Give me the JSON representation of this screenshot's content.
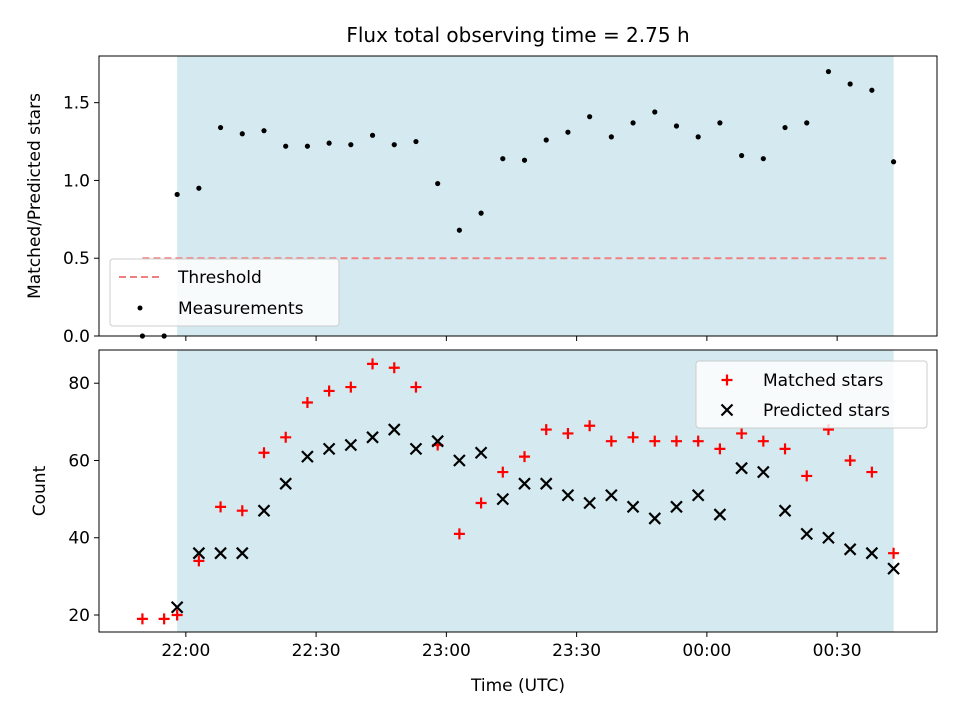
{
  "chart_data": [
    {
      "type": "scatter",
      "title": "Flux total observing time = 2.75 h",
      "xlabel": "",
      "ylabel": "Matched/Predicted stars",
      "ylim": [
        0,
        1.8
      ],
      "yticks": [
        0,
        0.5,
        1.0,
        1.5
      ],
      "ytick_labels": [
        "0.0",
        "0.5",
        "1.0",
        "1.5"
      ],
      "xlim_minutes": [
        1300,
        1493
      ],
      "shaded_span_minutes": [
        1318,
        1483
      ],
      "shade_color": "#d4eaf0",
      "grid": false,
      "legend_position": "lower-left",
      "threshold": {
        "name": "Threshold",
        "value": 0.5,
        "x_start": 1310,
        "x_end": 1482,
        "color": "#f08080"
      },
      "series": [
        {
          "name": "Measurements",
          "color": "#000000",
          "marker": "dot",
          "x": [
            1310,
            1315,
            1318,
            1323,
            1328,
            1333,
            1338,
            1343,
            1348,
            1353,
            1358,
            1363,
            1368,
            1373,
            1378,
            1383,
            1388,
            1393,
            1398,
            1403,
            1408,
            1413,
            1418,
            1423,
            1428,
            1433,
            1438,
            1443,
            1448,
            1453,
            1458,
            1463,
            1468,
            1473,
            1478,
            1483
          ],
          "y": [
            0,
            0,
            0.91,
            0.95,
            1.34,
            1.3,
            1.32,
            1.22,
            1.22,
            1.24,
            1.23,
            1.29,
            1.23,
            1.25,
            0.98,
            0.68,
            0.79,
            1.14,
            1.13,
            1.26,
            1.31,
            1.41,
            1.28,
            1.37,
            1.44,
            1.35,
            1.28,
            1.37,
            1.16,
            1.14,
            1.34,
            1.37,
            1.7,
            1.62,
            1.58,
            1.12
          ]
        }
      ]
    },
    {
      "type": "scatter",
      "title": "",
      "xlabel": "Time (UTC)",
      "ylabel": "Count",
      "ylim": [
        15.6,
        88.6
      ],
      "yticks": [
        20,
        40,
        60,
        80
      ],
      "ytick_labels": [
        "20",
        "40",
        "60",
        "80"
      ],
      "xticks_minutes": [
        1320,
        1350,
        1380,
        1410,
        1440,
        1470
      ],
      "xtick_labels": [
        "22:00",
        "22:30",
        "23:00",
        "23:30",
        "00:00",
        "00:30"
      ],
      "xlim_minutes": [
        1300,
        1493
      ],
      "shaded_span_minutes": [
        1318,
        1483
      ],
      "grid": false,
      "legend_position": "top-right",
      "series": [
        {
          "name": "Matched stars",
          "color": "#ff0000",
          "marker": "plus",
          "x": [
            1310,
            1315,
            1318,
            1323,
            1328,
            1333,
            1338,
            1343,
            1348,
            1353,
            1358,
            1363,
            1368,
            1373,
            1378,
            1383,
            1388,
            1393,
            1398,
            1403,
            1408,
            1413,
            1418,
            1423,
            1428,
            1433,
            1438,
            1443,
            1448,
            1453,
            1458,
            1463,
            1468,
            1473,
            1478,
            1483
          ],
          "y": [
            19,
            19,
            20,
            34,
            48,
            47,
            62,
            66,
            75,
            78,
            79,
            85,
            84,
            79,
            64,
            41,
            49,
            57,
            61,
            68,
            67,
            69,
            65,
            66,
            65,
            65,
            65,
            63,
            67,
            65,
            63,
            56,
            68,
            60,
            57,
            36
          ]
        },
        {
          "name": "Predicted stars",
          "color": "#000000",
          "marker": "x",
          "x": [
            1318,
            1323,
            1328,
            1333,
            1338,
            1343,
            1348,
            1353,
            1358,
            1363,
            1368,
            1373,
            1378,
            1383,
            1388,
            1393,
            1398,
            1403,
            1408,
            1413,
            1418,
            1423,
            1428,
            1433,
            1438,
            1443,
            1448,
            1453,
            1458,
            1463,
            1468,
            1473,
            1478,
            1483
          ],
          "y": [
            22,
            36,
            36,
            36,
            47,
            54,
            61,
            63,
            64,
            66,
            68,
            63,
            65,
            60,
            62,
            50,
            54,
            54,
            51,
            49,
            51,
            48,
            45,
            48,
            51,
            46,
            58,
            57,
            47,
            41,
            40,
            37,
            36,
            32
          ]
        }
      ]
    }
  ]
}
